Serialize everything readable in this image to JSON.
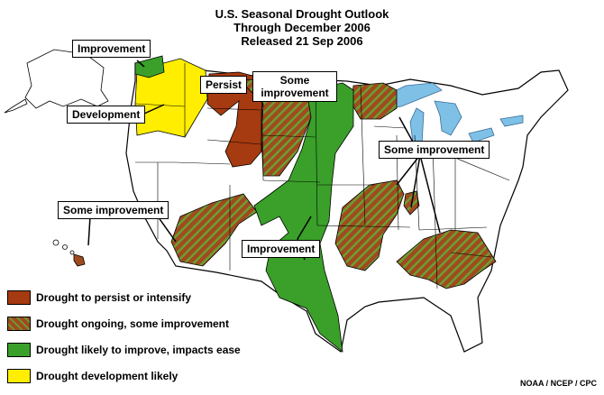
{
  "title": {
    "line1": "U.S. Seasonal Drought Outlook",
    "line2": "Through December 2006",
    "line3": "Released 21 Sep 2006"
  },
  "colors": {
    "persist": "#a63a10",
    "improve_some_base": "#a04a20",
    "improve_some_stripe": "#6aa030",
    "improve": "#3aa02a",
    "develop": "#ffee00",
    "water": "#7ec0e6",
    "land": "#ffffff",
    "border": "#000000"
  },
  "callouts": {
    "improvement_nw": "Improvement",
    "development": "Development",
    "persist": "Persist",
    "some_improvement_north": "Some improvement",
    "some_improvement_east": "Some improvement",
    "some_improvement_west": "Some improvement",
    "improvement_south": "Improvement"
  },
  "legend": [
    {
      "label": "Drought to persist or intensify",
      "icon": "solid-brown"
    },
    {
      "label": "Drought ongoing, some improvement",
      "icon": "hatched-brown-green"
    },
    {
      "label": "Drought likely to improve, impacts ease",
      "icon": "solid-green"
    },
    {
      "label": "Drought development likely",
      "icon": "solid-yellow"
    }
  ],
  "credit": "NOAA / NCEP / CPC"
}
